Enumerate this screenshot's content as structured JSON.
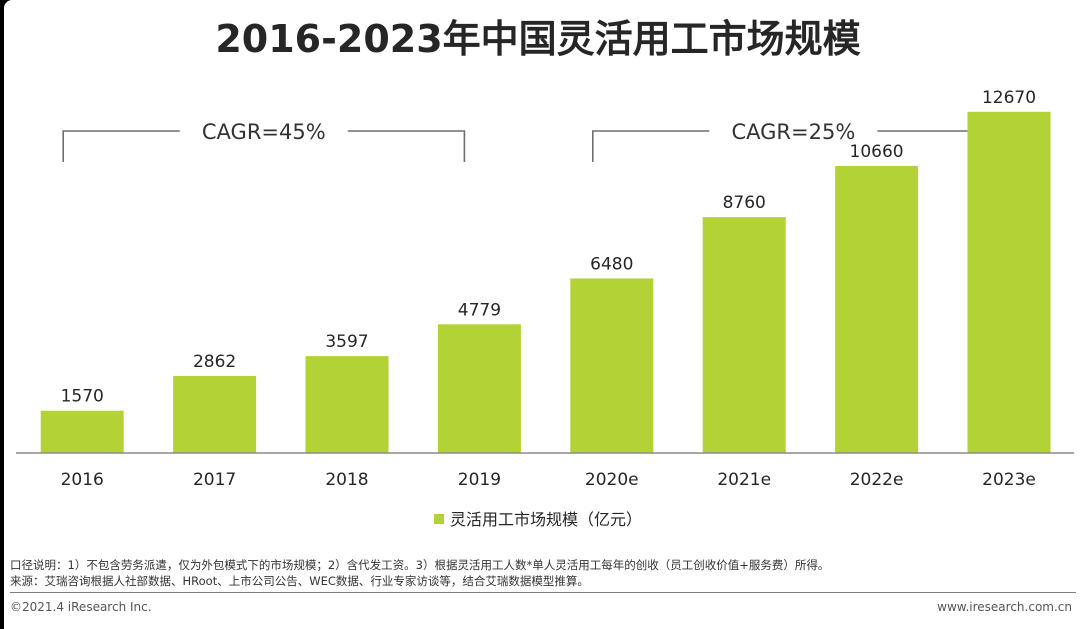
{
  "chart_data": {
    "type": "bar",
    "title": "2016-2023年中国灵活用工市场规模",
    "categories": [
      "2016",
      "2017",
      "2018",
      "2019",
      "2020e",
      "2021e",
      "2022e",
      "2023e"
    ],
    "values": [
      1570,
      2862,
      3597,
      4779,
      6480,
      8760,
      10660,
      12670
    ],
    "data_labels": [
      "1570",
      "2862",
      "3597",
      "4779",
      "6480",
      "8760",
      "10660",
      "12670"
    ],
    "series": [
      {
        "name": "灵活用工市场规模（亿元）",
        "values": [
          1570,
          2862,
          3597,
          4779,
          6480,
          8760,
          10660,
          12670
        ]
      }
    ],
    "xlabel": "",
    "ylabel": "",
    "ylim": [
      0,
      14000
    ],
    "grid": false,
    "legend": {
      "label": "灵活用工市场规模（亿元）",
      "placement": "bottom-center"
    },
    "annotations": [
      {
        "label": "CAGR=45%",
        "from": "2016",
        "to": "2019"
      },
      {
        "label": "CAGR=25%",
        "from": "2020e",
        "to": "2023e"
      }
    ],
    "colors": {
      "bar": "#b2d235",
      "text": "#262626",
      "bracket": "#6e6e6e",
      "axis": "#8c8c8c"
    }
  },
  "footer": {
    "note": "口径说明：1）不包含劳务派遣，仅为外包模式下的市场规模；2）含代发工资。3）根据灵活用工人数*单人灵活用工每年的创收（员工创收价值+服务费）所得。",
    "source": "来源：艾瑞咨询根据人社部数据、HRoot、上市公司公告、WEC数据、行业专家访谈等，结合艾瑞数据模型推算。",
    "copyright": "©2021.4 iResearch Inc.",
    "website": "www.iresearch.com.cn"
  }
}
